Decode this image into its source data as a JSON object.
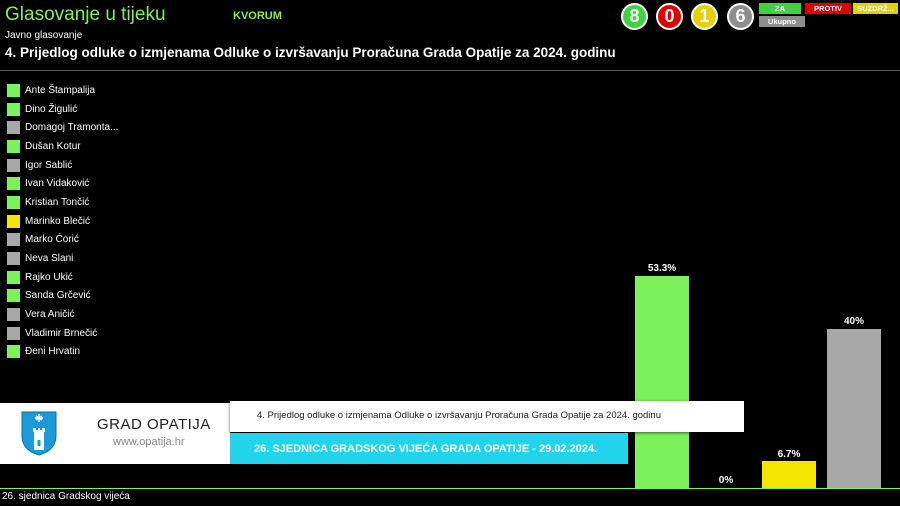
{
  "header": {
    "title": "Glasovanje u tijeku",
    "quorum_label": "KVORUM",
    "subtitle": "Javno glasovanje",
    "agenda_item": "4. Prijedlog odluke o izmjenama Odluke o izvršavanju Proračuna Grada Opatije za 2024. godinu"
  },
  "counts": {
    "za": "8",
    "protiv": "0",
    "suzdrzan": "1",
    "ukupno": "6"
  },
  "legend": {
    "za": "ZA",
    "protiv": "PROTIV",
    "suzdrzan": "SUZDRŽ...",
    "ukupno": "Ukupno"
  },
  "colors": {
    "za": "#7CF25A",
    "protiv": "#e00000",
    "suzdrzan": "#f5e600",
    "none": "#a8a8a8"
  },
  "members": [
    {
      "name": "Ante Štampalija",
      "vote": "za"
    },
    {
      "name": "Dino Žigulić",
      "vote": "za"
    },
    {
      "name": "Domagoj Tramonta...",
      "vote": "none"
    },
    {
      "name": "Dušan Kotur",
      "vote": "za"
    },
    {
      "name": "Igor Sablić",
      "vote": "none"
    },
    {
      "name": "Ivan Vidaković",
      "vote": "za"
    },
    {
      "name": "Kristian Tončić",
      "vote": "za"
    },
    {
      "name": "Marinko Blečić",
      "vote": "suzdrzan"
    },
    {
      "name": "Marko Ćorić",
      "vote": "none"
    },
    {
      "name": "Neva Slani",
      "vote": "none"
    },
    {
      "name": "Rajko Ukić",
      "vote": "za"
    },
    {
      "name": "Sanda Grčević",
      "vote": "za"
    },
    {
      "name": "Vera Aničić",
      "vote": "none"
    },
    {
      "name": "Vladimir Brnečić",
      "vote": "none"
    },
    {
      "name": "Đeni Hrvatin",
      "vote": "za"
    }
  ],
  "chart_data": {
    "type": "bar",
    "categories": [
      "Za",
      "Protiv",
      "Suzdržan",
      "Ukupno"
    ],
    "values": [
      53.3,
      0,
      6.7,
      40
    ],
    "data_labels": [
      "53.3%",
      "0%",
      "6.7%",
      "40%"
    ]
  },
  "lower_third": {
    "brand": "GRAD OPATIJA",
    "website": "www.opatija.hr",
    "item_text": "4. Prijedlog odluke o izmjenama Odluke o izvršavanju Proračuna Grada Opatije za 2024. godinu",
    "session": "26. SJEDNICA GRADSKOG VIJEĆA GRADA OPATIJE - 29.02.2024."
  },
  "footer": {
    "session_short": "26. sjednica Gradskog vijeća"
  }
}
